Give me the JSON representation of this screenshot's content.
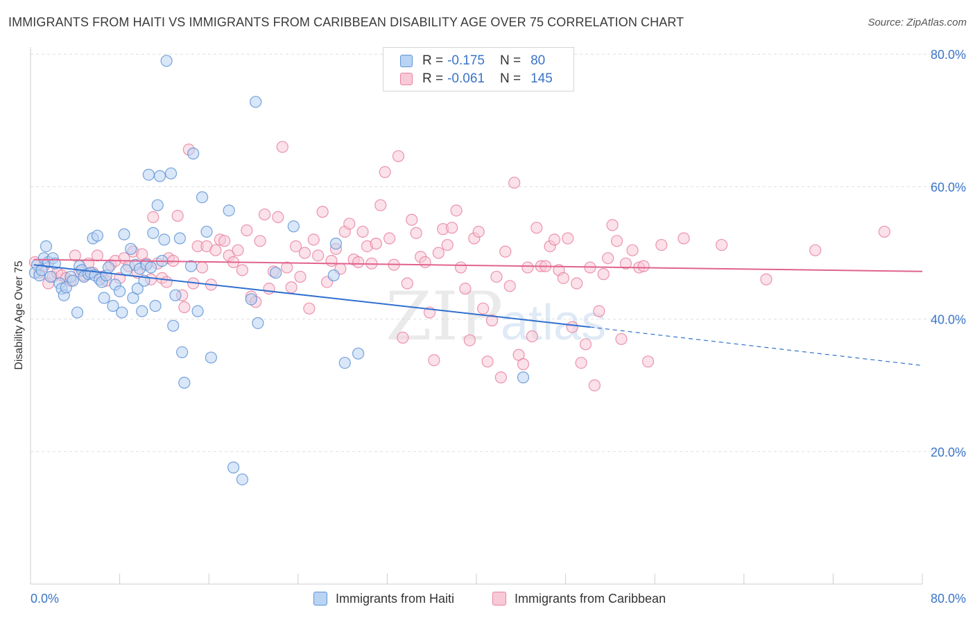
{
  "title": "IMMIGRANTS FROM HAITI VS IMMIGRANTS FROM CARIBBEAN DISABILITY AGE OVER 75 CORRELATION CHART",
  "source": "Source: ZipAtlas.com",
  "watermark": {
    "zip": "ZIP",
    "atlas": "atlas"
  },
  "legend": {
    "r_label": "R =",
    "n_label": "N =",
    "rows": [
      {
        "r": "-0.175",
        "n": "80",
        "fill": "#b9d3f3",
        "stroke": "#5f93d6"
      },
      {
        "r": "-0.061",
        "n": "145",
        "fill": "#f8c9d7",
        "stroke": "#e8839f"
      }
    ]
  },
  "chart_data": {
    "type": "scatter",
    "xlabel": "",
    "ylabel": "Disability Age Over 75",
    "xlim": [
      0,
      80
    ],
    "ylim": [
      0,
      84
    ],
    "x_tick_labels": [
      "0.0%",
      "80.0%"
    ],
    "y_ticks": [
      20,
      40,
      60,
      80
    ],
    "y_tick_labels": [
      "20.0%",
      "40.0%",
      "60.0%",
      "80.0%"
    ],
    "grid": "horizontal dashed",
    "legend_position": "bottom",
    "series": [
      {
        "name": "Immigrants from Haiti",
        "color": "#5f93d6",
        "fill": "#b9d3f3",
        "trend": {
          "x0": 0.3,
          "y0": 48.2,
          "x1": 50.2,
          "y1": 38.8,
          "dash_x1": 80,
          "dash_y1": 33.0,
          "color": "#2f6fd0"
        },
        "points": [
          [
            0.4,
            47.0
          ],
          [
            0.6,
            48.2
          ],
          [
            0.8,
            46.6
          ],
          [
            1.0,
            47.4
          ],
          [
            1.2,
            49.2
          ],
          [
            1.4,
            51.0
          ],
          [
            1.6,
            48.6
          ],
          [
            1.8,
            46.4
          ],
          [
            2.0,
            49.2
          ],
          [
            2.2,
            48.4
          ],
          [
            2.6,
            45.4
          ],
          [
            2.8,
            44.6
          ],
          [
            3.0,
            43.6
          ],
          [
            3.2,
            44.8
          ],
          [
            3.6,
            46.4
          ],
          [
            3.8,
            45.8
          ],
          [
            4.2,
            41.0
          ],
          [
            4.4,
            48.0
          ],
          [
            4.6,
            47.4
          ],
          [
            4.8,
            46.4
          ],
          [
            5.2,
            46.8
          ],
          [
            5.4,
            47.0
          ],
          [
            5.6,
            52.2
          ],
          [
            5.8,
            46.6
          ],
          [
            6.0,
            52.6
          ],
          [
            6.2,
            46.0
          ],
          [
            6.4,
            45.6
          ],
          [
            6.6,
            43.2
          ],
          [
            6.8,
            46.6
          ],
          [
            7.0,
            47.8
          ],
          [
            7.4,
            42.0
          ],
          [
            7.6,
            45.2
          ],
          [
            8.0,
            44.2
          ],
          [
            8.2,
            41.0
          ],
          [
            8.4,
            52.8
          ],
          [
            8.6,
            47.4
          ],
          [
            9.0,
            50.6
          ],
          [
            9.2,
            43.2
          ],
          [
            9.4,
            48.2
          ],
          [
            9.6,
            44.6
          ],
          [
            9.8,
            47.6
          ],
          [
            10.0,
            41.2
          ],
          [
            10.2,
            45.8
          ],
          [
            10.4,
            48.2
          ],
          [
            10.6,
            61.8
          ],
          [
            10.8,
            47.8
          ],
          [
            11.0,
            53.0
          ],
          [
            11.2,
            42.0
          ],
          [
            11.4,
            57.2
          ],
          [
            11.6,
            61.6
          ],
          [
            11.8,
            48.8
          ],
          [
            12.0,
            52.0
          ],
          [
            12.2,
            79.0
          ],
          [
            12.6,
            62.0
          ],
          [
            12.8,
            39.0
          ],
          [
            13.0,
            43.6
          ],
          [
            13.4,
            52.2
          ],
          [
            13.6,
            35.0
          ],
          [
            13.8,
            30.4
          ],
          [
            14.4,
            48.0
          ],
          [
            14.6,
            65.0
          ],
          [
            15.0,
            41.2
          ],
          [
            15.4,
            58.4
          ],
          [
            15.8,
            53.2
          ],
          [
            16.2,
            34.2
          ],
          [
            17.8,
            56.4
          ],
          [
            18.2,
            17.6
          ],
          [
            19.0,
            15.8
          ],
          [
            19.8,
            43.0
          ],
          [
            20.2,
            72.8
          ],
          [
            20.4,
            39.4
          ],
          [
            22.0,
            47.0
          ],
          [
            23.6,
            54.0
          ],
          [
            27.2,
            46.6
          ],
          [
            27.4,
            51.4
          ],
          [
            28.2,
            33.4
          ],
          [
            29.4,
            34.8
          ],
          [
            44.2,
            31.2
          ]
        ]
      },
      {
        "name": "Immigrants from Caribbean",
        "color": "#e8839f",
        "fill": "#f8c9d7",
        "trend": {
          "x0": 0.3,
          "y0": 49.0,
          "x1": 80,
          "y1": 47.2,
          "color": "#e0628c"
        },
        "points": [
          [
            0.4,
            48.6
          ],
          [
            0.8,
            47.0
          ],
          [
            1.2,
            48.0
          ],
          [
            1.6,
            45.4
          ],
          [
            2.0,
            46.4
          ],
          [
            2.4,
            47.0
          ],
          [
            2.8,
            46.6
          ],
          [
            3.2,
            46.2
          ],
          [
            3.6,
            45.8
          ],
          [
            4.0,
            49.6
          ],
          [
            4.4,
            47.2
          ],
          [
            4.8,
            46.6
          ],
          [
            5.2,
            48.4
          ],
          [
            5.6,
            47.0
          ],
          [
            6.0,
            49.6
          ],
          [
            6.4,
            46.4
          ],
          [
            6.8,
            45.8
          ],
          [
            7.2,
            48.2
          ],
          [
            7.6,
            48.8
          ],
          [
            8.0,
            46.2
          ],
          [
            8.4,
            49.2
          ],
          [
            8.8,
            48.0
          ],
          [
            9.2,
            50.2
          ],
          [
            9.6,
            47.0
          ],
          [
            10.0,
            49.8
          ],
          [
            10.4,
            48.4
          ],
          [
            10.8,
            46.0
          ],
          [
            11.0,
            55.4
          ],
          [
            11.4,
            48.4
          ],
          [
            11.8,
            46.2
          ],
          [
            12.2,
            45.6
          ],
          [
            12.4,
            49.2
          ],
          [
            12.8,
            48.8
          ],
          [
            13.2,
            55.6
          ],
          [
            13.6,
            43.6
          ],
          [
            13.8,
            41.8
          ],
          [
            14.2,
            65.6
          ],
          [
            14.6,
            45.4
          ],
          [
            15.0,
            51.0
          ],
          [
            15.4,
            47.8
          ],
          [
            15.8,
            51.0
          ],
          [
            16.2,
            45.2
          ],
          [
            16.6,
            50.4
          ],
          [
            17.0,
            52.0
          ],
          [
            17.4,
            51.8
          ],
          [
            17.8,
            49.6
          ],
          [
            18.2,
            48.6
          ],
          [
            18.6,
            50.4
          ],
          [
            19.0,
            47.4
          ],
          [
            19.4,
            53.4
          ],
          [
            19.8,
            43.4
          ],
          [
            20.2,
            42.6
          ],
          [
            20.6,
            51.8
          ],
          [
            21.0,
            55.8
          ],
          [
            21.4,
            44.6
          ],
          [
            21.8,
            47.2
          ],
          [
            22.2,
            55.4
          ],
          [
            22.6,
            66.0
          ],
          [
            23.0,
            47.8
          ],
          [
            23.4,
            44.8
          ],
          [
            23.8,
            51.0
          ],
          [
            24.2,
            46.4
          ],
          [
            24.6,
            50.0
          ],
          [
            25.0,
            41.6
          ],
          [
            25.4,
            52.0
          ],
          [
            25.8,
            49.6
          ],
          [
            26.2,
            56.2
          ],
          [
            26.6,
            45.6
          ],
          [
            27.0,
            48.8
          ],
          [
            27.4,
            50.6
          ],
          [
            27.8,
            47.6
          ],
          [
            28.2,
            53.2
          ],
          [
            28.6,
            54.4
          ],
          [
            29.0,
            49.0
          ],
          [
            29.4,
            48.6
          ],
          [
            29.8,
            53.2
          ],
          [
            30.2,
            51.0
          ],
          [
            30.6,
            48.4
          ],
          [
            31.0,
            51.4
          ],
          [
            31.4,
            57.2
          ],
          [
            31.8,
            62.2
          ],
          [
            32.2,
            52.2
          ],
          [
            32.6,
            48.2
          ],
          [
            33.0,
            64.6
          ],
          [
            33.4,
            37.2
          ],
          [
            33.8,
            45.4
          ],
          [
            34.2,
            55.0
          ],
          [
            34.6,
            53.0
          ],
          [
            35.0,
            49.4
          ],
          [
            35.4,
            48.6
          ],
          [
            35.8,
            41.0
          ],
          [
            36.2,
            33.8
          ],
          [
            36.6,
            50.0
          ],
          [
            37.0,
            53.6
          ],
          [
            37.4,
            51.2
          ],
          [
            37.8,
            53.8
          ],
          [
            38.2,
            56.4
          ],
          [
            38.6,
            47.8
          ],
          [
            39.0,
            44.6
          ],
          [
            39.4,
            36.8
          ],
          [
            39.8,
            52.2
          ],
          [
            40.2,
            53.2
          ],
          [
            40.6,
            41.6
          ],
          [
            41.0,
            33.6
          ],
          [
            41.4,
            39.8
          ],
          [
            41.8,
            46.4
          ],
          [
            42.2,
            31.2
          ],
          [
            42.6,
            50.2
          ],
          [
            43.0,
            45.0
          ],
          [
            43.4,
            60.6
          ],
          [
            43.8,
            34.6
          ],
          [
            44.2,
            33.2
          ],
          [
            44.6,
            47.8
          ],
          [
            45.0,
            37.4
          ],
          [
            45.4,
            53.8
          ],
          [
            45.8,
            48.0
          ],
          [
            46.2,
            48.0
          ],
          [
            46.6,
            51.0
          ],
          [
            47.0,
            52.0
          ],
          [
            47.4,
            47.4
          ],
          [
            47.8,
            46.2
          ],
          [
            48.2,
            52.2
          ],
          [
            48.6,
            38.8
          ],
          [
            49.0,
            45.4
          ],
          [
            49.4,
            33.4
          ],
          [
            49.8,
            36.2
          ],
          [
            50.2,
            47.8
          ],
          [
            50.6,
            30.0
          ],
          [
            51.0,
            41.2
          ],
          [
            51.4,
            46.8
          ],
          [
            51.8,
            49.2
          ],
          [
            52.2,
            54.2
          ],
          [
            52.6,
            51.8
          ],
          [
            53.0,
            37.0
          ],
          [
            53.4,
            48.4
          ],
          [
            54.0,
            50.4
          ],
          [
            54.6,
            47.8
          ],
          [
            55.0,
            48.0
          ],
          [
            55.4,
            33.6
          ],
          [
            56.6,
            51.2
          ],
          [
            58.6,
            52.2
          ],
          [
            62.0,
            51.2
          ],
          [
            66.0,
            46.0
          ],
          [
            70.4,
            50.4
          ],
          [
            76.6,
            53.2
          ]
        ]
      }
    ]
  }
}
